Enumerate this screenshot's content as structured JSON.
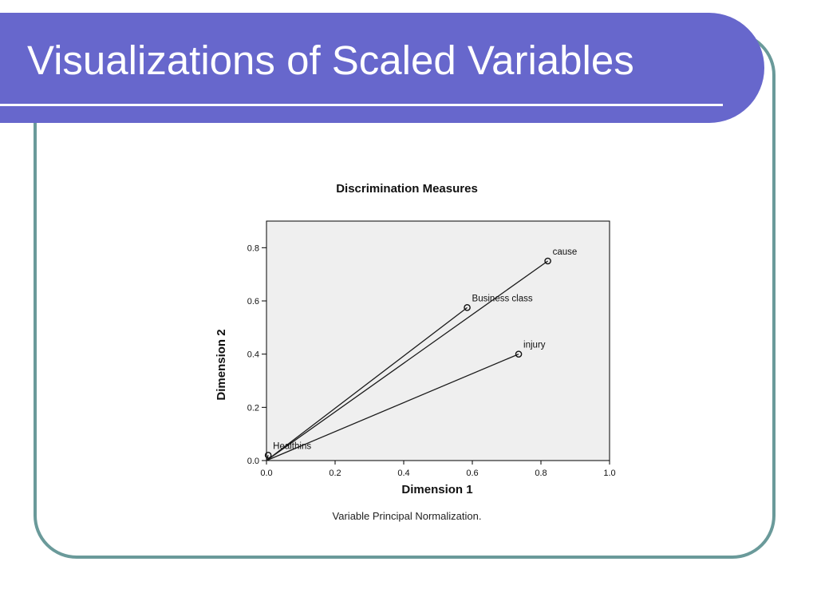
{
  "slide": {
    "title": "Visualizations of Scaled Variables"
  },
  "colors": {
    "title_bar": "#6767cc",
    "frame_border": "#6a9a9a",
    "plot_background": "#efefef"
  },
  "chart_data": {
    "type": "scatter",
    "title": "Discrimination Measures",
    "xlabel": "Dimension 1",
    "ylabel": "Dimension 2",
    "caption": "Variable Principal Normalization.",
    "xlim": [
      0.0,
      1.0
    ],
    "ylim": [
      0.0,
      0.9
    ],
    "xticks": [
      0.0,
      0.2,
      0.4,
      0.6,
      0.8,
      1.0
    ],
    "yticks": [
      0.0,
      0.2,
      0.4,
      0.6,
      0.8
    ],
    "xtick_labels": [
      "0.0",
      "0.2",
      "0.4",
      "0.6",
      "0.8",
      "1.0"
    ],
    "ytick_labels": [
      "0.0",
      "0.2",
      "0.4",
      "0.6",
      "0.8"
    ],
    "vectors_from_origin": true,
    "grid": false,
    "points": [
      {
        "label": "cause",
        "x": 0.82,
        "y": 0.75
      },
      {
        "label": "Business class",
        "x": 0.585,
        "y": 0.575
      },
      {
        "label": "injury",
        "x": 0.735,
        "y": 0.4
      },
      {
        "label": "Healthins",
        "x": 0.005,
        "y": 0.02
      }
    ]
  }
}
